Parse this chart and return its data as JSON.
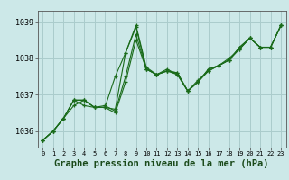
{
  "bg_color": "#cce8e8",
  "grid_color": "#aacccc",
  "line_color": "#1a6b1a",
  "marker_color": "#1a6b1a",
  "xlabel": "Graphe pression niveau de la mer (hPa)",
  "xlabel_fontsize": 7.5,
  "xlim": [
    -0.5,
    23.5
  ],
  "ylim": [
    1035.55,
    1039.3
  ],
  "yticks": [
    1036,
    1037,
    1038,
    1039
  ],
  "xticks": [
    0,
    1,
    2,
    3,
    4,
    5,
    6,
    7,
    8,
    9,
    10,
    11,
    12,
    13,
    14,
    15,
    16,
    17,
    18,
    19,
    20,
    21,
    22,
    23
  ],
  "series": [
    [
      1035.75,
      1036.0,
      1036.35,
      1036.7,
      1036.85,
      1036.65,
      1036.65,
      1036.6,
      1038.15,
      1038.9,
      1037.75,
      1037.55,
      1037.7,
      1037.55,
      1037.1,
      1037.35,
      1037.65,
      1037.8,
      1037.95,
      1038.3,
      1038.55,
      1038.3,
      1038.3,
      1038.9
    ],
    [
      1035.75,
      1036.0,
      1036.35,
      1036.85,
      1036.85,
      1036.65,
      1036.65,
      1037.5,
      1038.15,
      1038.85,
      1037.7,
      1037.55,
      1037.65,
      1037.6,
      1037.1,
      1037.35,
      1037.7,
      1037.8,
      1037.95,
      1038.3,
      1038.55,
      1038.3,
      1038.3,
      1038.9
    ],
    [
      1035.75,
      1036.0,
      1036.35,
      1036.85,
      1036.7,
      1036.65,
      1036.7,
      1036.55,
      1037.5,
      1038.65,
      1037.7,
      1037.55,
      1037.65,
      1037.6,
      1037.1,
      1037.35,
      1037.7,
      1037.8,
      1037.95,
      1038.25,
      1038.55,
      1038.3,
      1038.3,
      1038.9
    ],
    [
      1035.75,
      1036.0,
      1036.35,
      1036.85,
      1036.85,
      1036.65,
      1036.65,
      1036.5,
      1037.35,
      1038.5,
      1037.7,
      1037.55,
      1037.65,
      1037.55,
      1037.1,
      1037.4,
      1037.65,
      1037.8,
      1038.0,
      1038.25,
      1038.55,
      1038.3,
      1038.3,
      1038.9
    ]
  ]
}
